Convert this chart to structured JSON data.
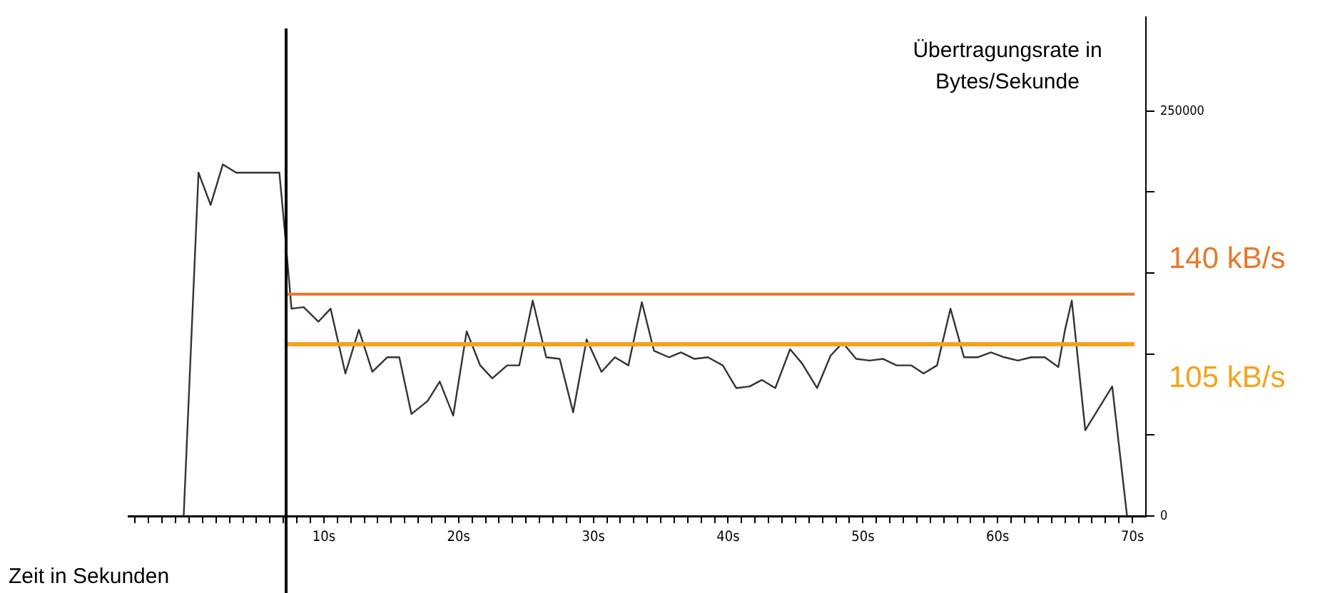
{
  "chart_data": {
    "type": "line",
    "xlabel": "Zeit in Sekunden",
    "ylabel": "Übertragungsrate in Bytes/Sekunde",
    "x": [
      -0.4,
      0.7,
      1.6,
      2.5,
      3.5,
      6.7,
      7.1,
      7.6,
      8.5,
      9.6,
      10.5,
      11.6,
      12.6,
      13.6,
      14.7,
      15.6,
      16.5,
      17.7,
      18.6,
      19.6,
      20.6,
      21.6,
      22.5,
      23.6,
      24.5,
      25.5,
      26.5,
      27.5,
      28.5,
      29.5,
      30.6,
      31.6,
      32.6,
      33.6,
      34.5,
      35.6,
      36.5,
      37.5,
      38.5,
      39.6,
      40.6,
      41.6,
      42.5,
      43.5,
      44.6,
      45.5,
      46.6,
      47.6,
      48.5,
      49.5,
      50.5,
      51.5,
      52.5,
      53.6,
      54.5,
      55.5,
      56.5,
      57.5,
      58.5,
      59.5,
      60.5,
      61.5,
      62.5,
      63.5,
      64.5,
      65.0,
      65.5,
      66.5,
      68.5,
      69.6
    ],
    "series": [
      {
        "color": "#333333",
        "values": [
          0,
          212000,
          192000,
          217000,
          212000,
          212000,
          176000,
          128000,
          129000,
          120000,
          128000,
          88000,
          115000,
          89000,
          98000,
          98000,
          63000,
          71000,
          83000,
          62000,
          114000,
          93000,
          85000,
          93000,
          93000,
          133000,
          98000,
          97000,
          64000,
          109000,
          89000,
          98000,
          93000,
          132000,
          102000,
          98000,
          101000,
          97000,
          98000,
          93000,
          79000,
          80000,
          84000,
          79000,
          103000,
          94000,
          79000,
          99000,
          107000,
          97000,
          96000,
          97000,
          93000,
          93000,
          88000,
          93000,
          128000,
          98000,
          98000,
          101000,
          98000,
          96000,
          98000,
          98000,
          92000,
          115000,
          133000,
          53000,
          80000,
          0
        ]
      }
    ],
    "xlim": [
      -4.5,
      71
    ],
    "ylim": [
      0,
      308000
    ],
    "xticks": [
      {
        "value": -4,
        "label": null
      },
      {
        "value": -3,
        "label": null
      },
      {
        "value": -2,
        "label": null
      },
      {
        "value": -1,
        "label": null
      },
      {
        "value": 0,
        "label": null
      },
      {
        "value": 1,
        "label": null
      },
      {
        "value": 2,
        "label": null
      },
      {
        "value": 3,
        "label": null
      },
      {
        "value": 4,
        "label": null
      },
      {
        "value": 5,
        "label": null
      },
      {
        "value": 6,
        "label": null
      },
      {
        "value": 7,
        "label": null
      },
      {
        "value": 8,
        "label": null
      },
      {
        "value": 9,
        "label": null
      },
      {
        "value": 10,
        "label": "10s"
      },
      {
        "value": 11,
        "label": null
      },
      {
        "value": 12,
        "label": null
      },
      {
        "value": 13,
        "label": null
      },
      {
        "value": 14,
        "label": null
      },
      {
        "value": 15,
        "label": null
      },
      {
        "value": 16,
        "label": null
      },
      {
        "value": 17,
        "label": null
      },
      {
        "value": 18,
        "label": null
      },
      {
        "value": 19,
        "label": null
      },
      {
        "value": 20,
        "label": "20s"
      },
      {
        "value": 21,
        "label": null
      },
      {
        "value": 22,
        "label": null
      },
      {
        "value": 23,
        "label": null
      },
      {
        "value": 24,
        "label": null
      },
      {
        "value": 25,
        "label": null
      },
      {
        "value": 26,
        "label": null
      },
      {
        "value": 27,
        "label": null
      },
      {
        "value": 28,
        "label": null
      },
      {
        "value": 29,
        "label": null
      },
      {
        "value": 30,
        "label": "30s"
      },
      {
        "value": 31,
        "label": null
      },
      {
        "value": 32,
        "label": null
      },
      {
        "value": 33,
        "label": null
      },
      {
        "value": 34,
        "label": null
      },
      {
        "value": 35,
        "label": null
      },
      {
        "value": 36,
        "label": null
      },
      {
        "value": 37,
        "label": null
      },
      {
        "value": 38,
        "label": null
      },
      {
        "value": 39,
        "label": null
      },
      {
        "value": 40,
        "label": "40s"
      },
      {
        "value": 41,
        "label": null
      },
      {
        "value": 42,
        "label": null
      },
      {
        "value": 43,
        "label": null
      },
      {
        "value": 44,
        "label": null
      },
      {
        "value": 45,
        "label": null
      },
      {
        "value": 46,
        "label": null
      },
      {
        "value": 47,
        "label": null
      },
      {
        "value": 48,
        "label": null
      },
      {
        "value": 49,
        "label": null
      },
      {
        "value": 50,
        "label": "50s"
      },
      {
        "value": 51,
        "label": null
      },
      {
        "value": 52,
        "label": null
      },
      {
        "value": 53,
        "label": null
      },
      {
        "value": 54,
        "label": null
      },
      {
        "value": 55,
        "label": null
      },
      {
        "value": 56,
        "label": null
      },
      {
        "value": 57,
        "label": null
      },
      {
        "value": 58,
        "label": null
      },
      {
        "value": 59,
        "label": null
      },
      {
        "value": 60,
        "label": "60s"
      },
      {
        "value": 61,
        "label": null
      },
      {
        "value": 62,
        "label": null
      },
      {
        "value": 63,
        "label": null
      },
      {
        "value": 64,
        "label": null
      },
      {
        "value": 65,
        "label": null
      },
      {
        "value": 66,
        "label": null
      },
      {
        "value": 67,
        "label": null
      },
      {
        "value": 68,
        "label": null
      },
      {
        "value": 69,
        "label": null
      },
      {
        "value": 70,
        "label": "70s"
      }
    ],
    "yticks": [
      0,
      {
        "value": 50000,
        "label": null
      },
      {
        "value": 100000,
        "label": null
      },
      {
        "value": 150000,
        "label": null
      },
      {
        "value": 200000,
        "label": null
      },
      250000
    ],
    "ref_lines": [
      {
        "axis": "y",
        "value": 137000,
        "label": "140 kB/s",
        "color": "#e8782a"
      },
      {
        "axis": "y",
        "value": 106000,
        "label": "105 kB/s",
        "color": "#f5a21b"
      },
      {
        "axis": "x",
        "value": 7.2,
        "color": "#000000"
      }
    ],
    "marker": "none",
    "line_style": "solid",
    "grid": false,
    "legend": false
  }
}
